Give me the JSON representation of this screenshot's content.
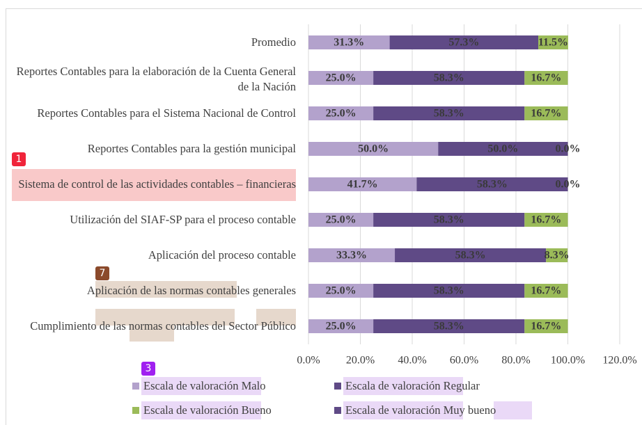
{
  "chart_data": {
    "type": "stacked_barh",
    "categories": [
      "Promedio",
      "Reportes Contables para la elaboración de la Cuenta General de la Nación",
      "Reportes Contables para el Sistema Nacional de Control",
      "Reportes Contables para la gestión municipal",
      "Sistema de control de las actividades contables – financieras",
      "Utilización del SIAF-SP para el proceso contable",
      "Aplicación del proceso contable",
      "Aplicación de las normas contables generales",
      "Cumplimiento de las normas contables del Sector Público"
    ],
    "series": [
      {
        "name": "Escala de valoración Malo",
        "color": "#b3a2cc",
        "values": [
          31.3,
          25.0,
          25.0,
          50.0,
          41.7,
          25.0,
          33.3,
          25.0,
          25.0
        ],
        "value_labels": [
          "31.3%",
          "25.0%",
          "25.0%",
          "50.0%",
          "41.7%",
          "25.0%",
          "33.3%",
          "25.0%",
          "25.0%"
        ]
      },
      {
        "name": "Escala de valoración Regular",
        "color": "#5f4a86",
        "values": [
          57.3,
          58.3,
          58.3,
          50.0,
          58.3,
          58.3,
          58.3,
          58.3,
          58.3
        ],
        "value_labels": [
          "57.3%",
          "58.3%",
          "58.3%",
          "50.0%",
          "58.3%",
          "58.3%",
          "58.3%",
          "58.3%",
          "58.3%"
        ]
      },
      {
        "name": "Escala de valoración Bueno",
        "color": "#9bbb59",
        "values": [
          11.5,
          16.7,
          16.7,
          0.0,
          0.0,
          16.7,
          8.3,
          16.7,
          16.7
        ],
        "value_labels": [
          "11.5%",
          "16.7%",
          "16.7%",
          "0.0%",
          "0.0%",
          "16.7%",
          "8.3%",
          "16.7%",
          "16.7%"
        ]
      },
      {
        "name": "Escala de valoración Muy bueno",
        "color": "#5f4a86",
        "values": [
          0,
          0,
          0,
          0,
          0,
          0,
          0,
          0,
          0
        ]
      }
    ],
    "xlim": [
      0,
      120
    ],
    "xticks": [
      {
        "value": 0,
        "label": "0.0%"
      },
      {
        "value": 20,
        "label": "20.0%"
      },
      {
        "value": 40,
        "label": "40.0%"
      },
      {
        "value": 60,
        "label": "60.0%"
      },
      {
        "value": 80,
        "label": "80.0%"
      },
      {
        "value": 100,
        "label": "100.0%"
      },
      {
        "value": 120,
        "label": "120.0%"
      }
    ],
    "grid": true,
    "annotations": [
      "1",
      "7",
      "3"
    ]
  }
}
